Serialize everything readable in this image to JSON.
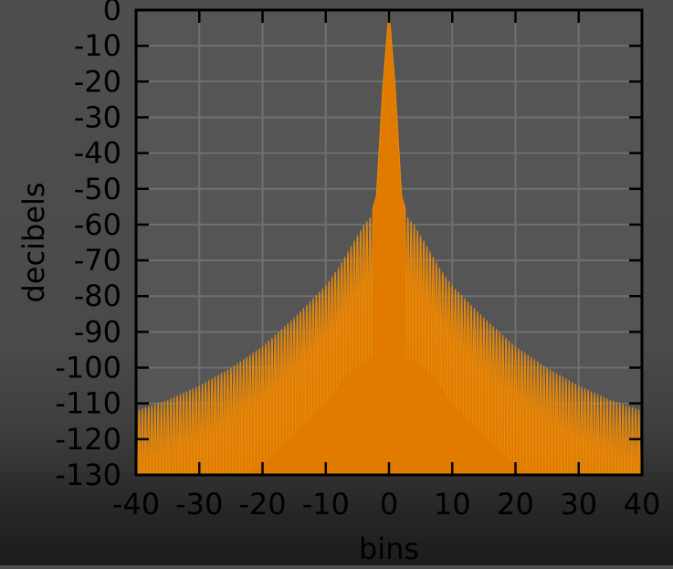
{
  "chart_data": {
    "type": "area",
    "title": "",
    "xlabel": "bins",
    "ylabel": "decibels",
    "xlim": [
      -40,
      40
    ],
    "ylim": [
      -130,
      0
    ],
    "x_ticks": [
      -40,
      -30,
      -20,
      -10,
      0,
      10,
      20,
      30,
      40
    ],
    "y_ticks": [
      0,
      -10,
      -20,
      -30,
      -40,
      -50,
      -60,
      -70,
      -80,
      -90,
      -100,
      -110,
      -120,
      -130
    ],
    "grid": true,
    "legend": "none",
    "series": [
      {
        "envelope_peaks": {
          "x": [
            0,
            1,
            2,
            3,
            4,
            5,
            6,
            8,
            10,
            15,
            20,
            25,
            30,
            35,
            40
          ],
          "y": [
            0,
            -22,
            -52,
            -58,
            -60,
            -63,
            -66,
            -72,
            -77,
            -86,
            -94,
            -100,
            -105,
            -109,
            -112
          ]
        },
        "sidelobe_floor_db": -130
      }
    ],
    "colors": {
      "fill": "#e07b00",
      "stroke": "#e48a10",
      "plot_background": "#555555",
      "grid": "#6f6f6f",
      "axis": "#000000",
      "text": "#000000"
    }
  }
}
